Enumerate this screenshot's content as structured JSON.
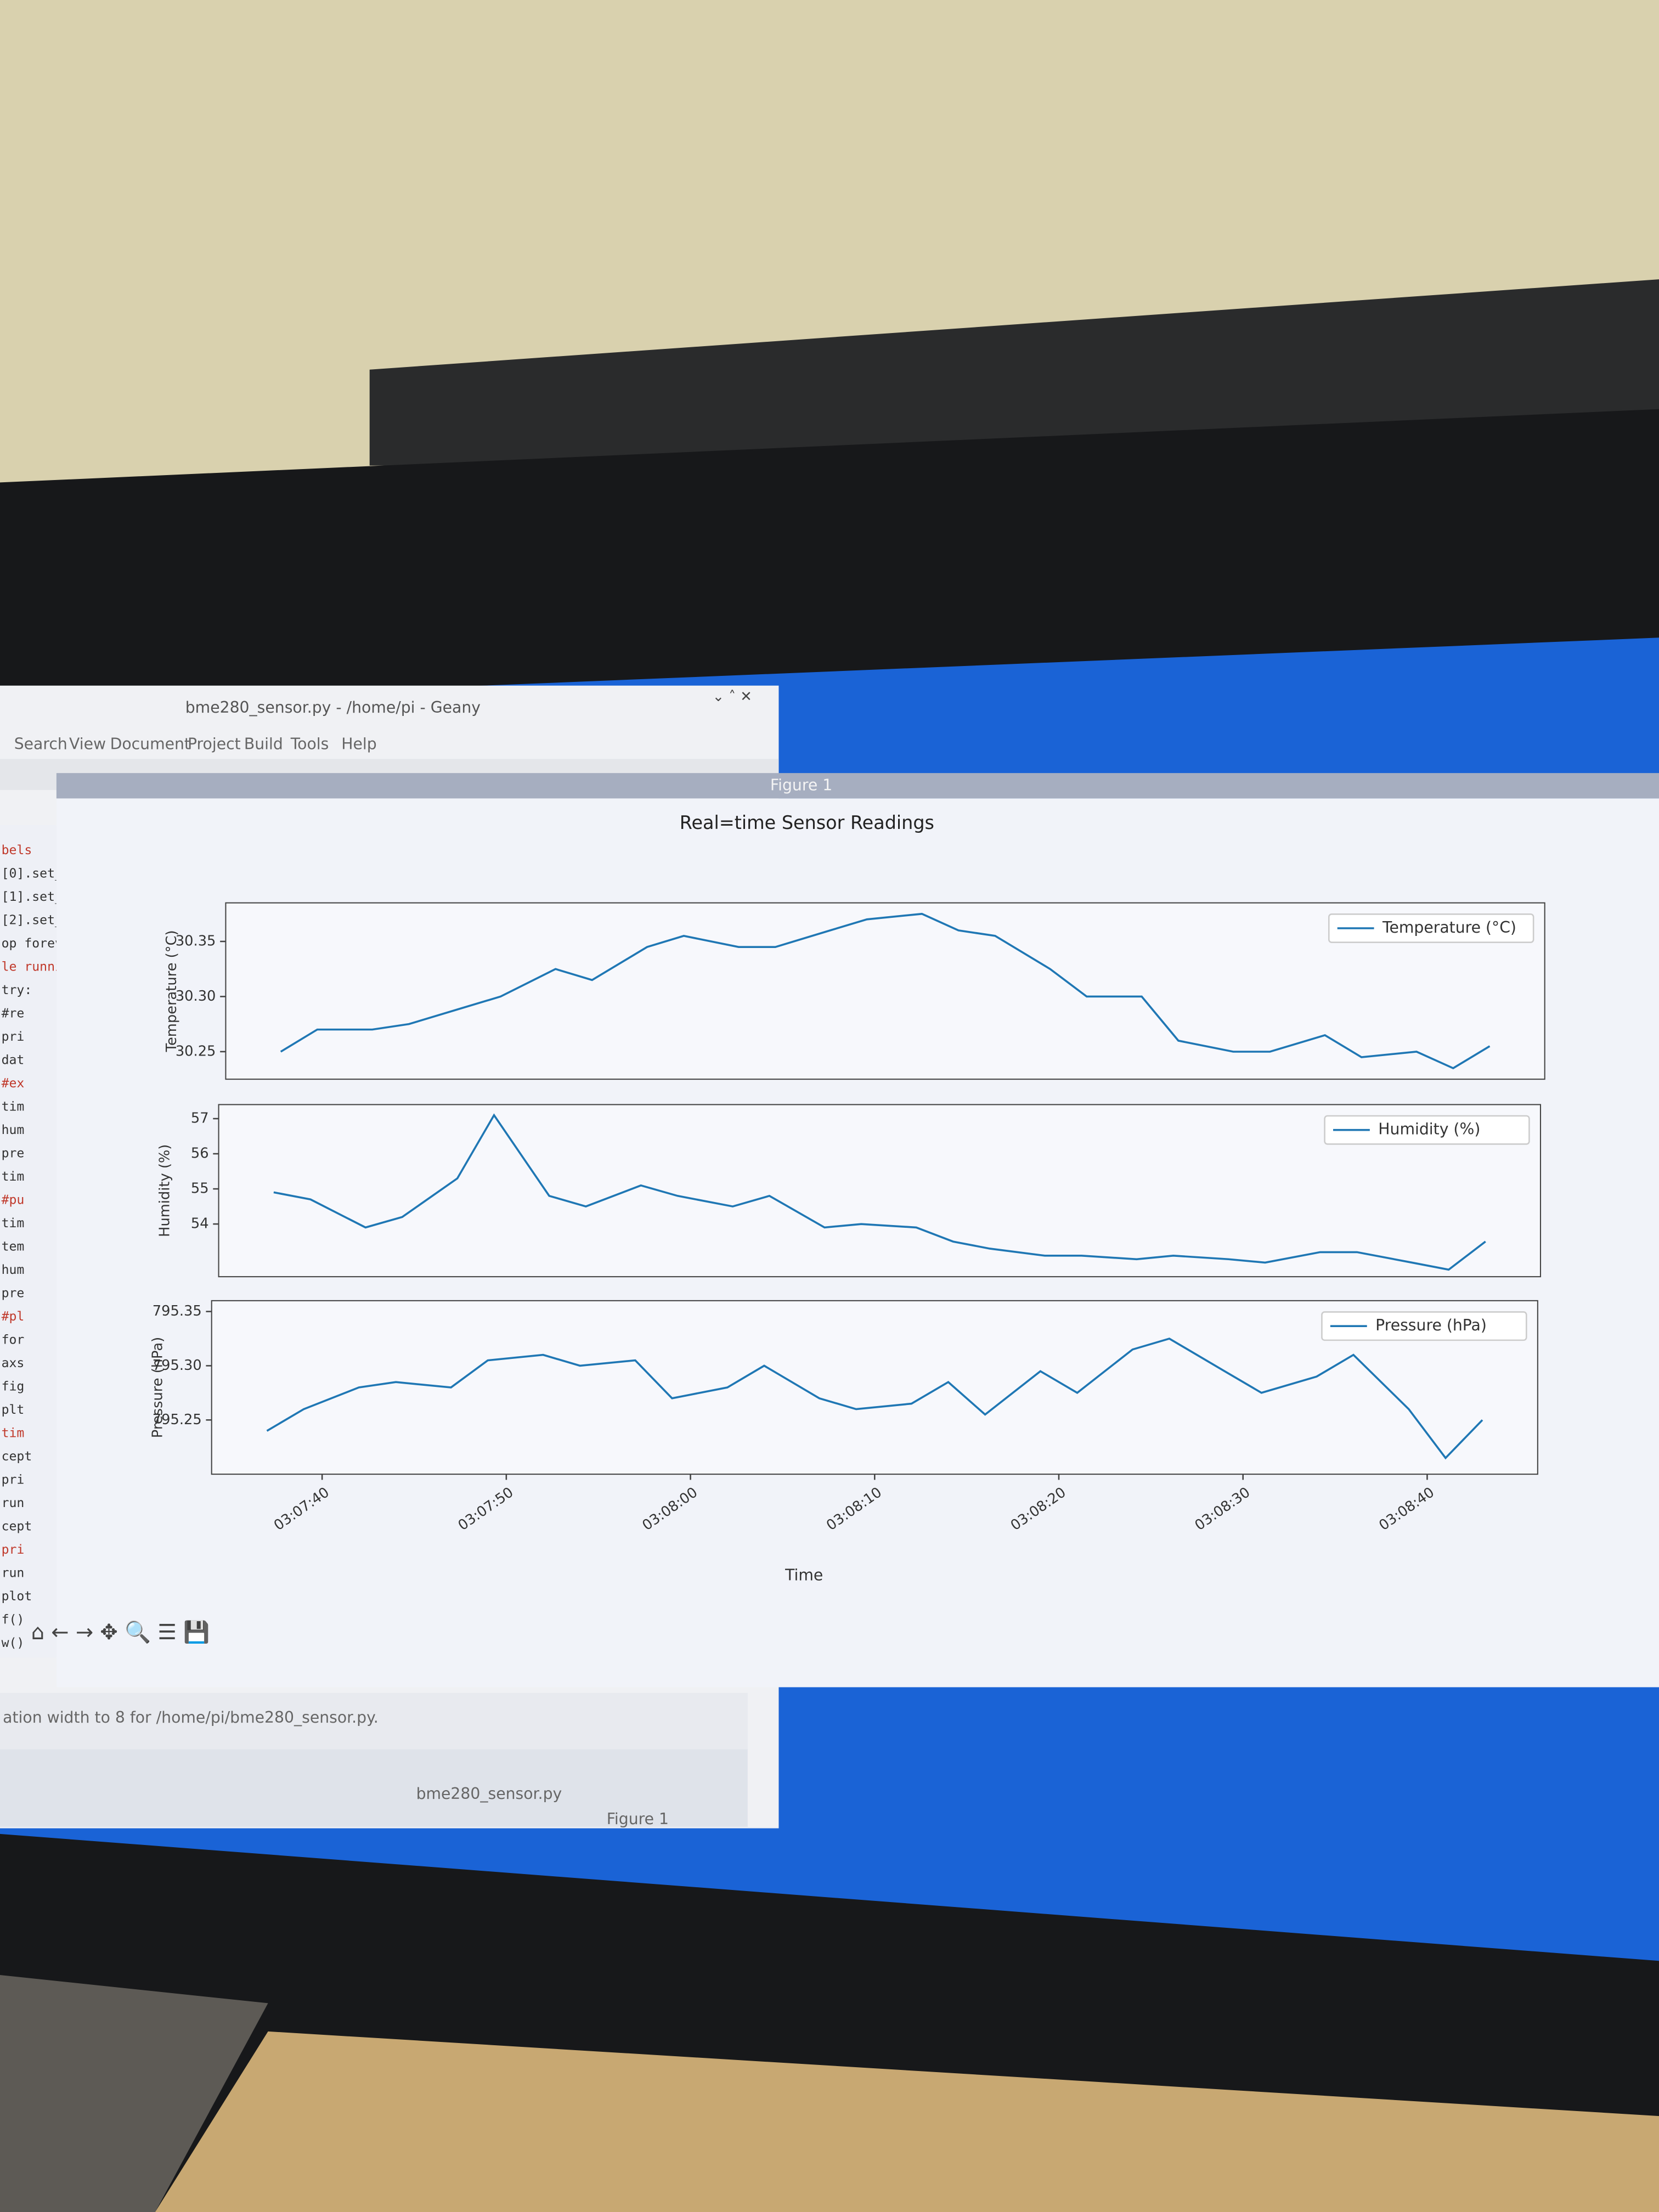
{
  "editor": {
    "title": "bme280_sensor.py - /home/pi - Geany",
    "menu": [
      "Search",
      "View",
      "Document",
      "Project",
      "Build",
      "Tools",
      "Help"
    ],
    "code": [
      "bels",
      "[0].set_",
      "[1].set_",
      "[2].set_",
      "op forev",
      "le runni",
      "try:",
      "#re",
      "pri",
      "dat",
      "#ex",
      "tim",
      "hum",
      "pre",
      "tim",
      "#pu",
      "tim",
      "tem",
      "hum",
      "pre",
      "#pl",
      "for",
      "axs",
      "fig",
      "plt",
      "tim",
      "cept",
      "pri",
      "run",
      "cept",
      "pri",
      "run",
      "plot",
      "f()",
      "w()"
    ],
    "status": "ation width to 8 for /home/pi/bme280_sensor.py."
  },
  "taskbar": [
    "bme280_sensor.py",
    "Figure 1"
  ],
  "figure": {
    "window_title": "Figure 1",
    "suptitle": "Real=time Sensor Readings"
  },
  "chart_data": [
    {
      "type": "line",
      "ylabel": "Temperature (°C)",
      "legend": "upper right",
      "grid": false,
      "x": [
        "03:07:37",
        "03:07:39",
        "03:07:42",
        "03:07:44",
        "03:07:47",
        "03:07:49",
        "03:07:52",
        "03:07:54",
        "03:07:57",
        "03:07:59",
        "03:08:02",
        "03:08:04",
        "03:08:07",
        "03:08:09",
        "03:08:12",
        "03:08:14",
        "03:08:16",
        "03:08:19",
        "03:08:21",
        "03:08:24",
        "03:08:26",
        "03:08:29",
        "03:08:31",
        "03:08:34",
        "03:08:36",
        "03:08:39",
        "03:08:41",
        "03:08:43"
      ],
      "xlim": [
        "03:07:34",
        "03:08:46"
      ],
      "ylim": [
        30.225,
        30.385
      ],
      "yticks": [
        30.25,
        {
          "value": 30.3,
          "label": "30.30"
        },
        30.35
      ],
      "series": [
        {
          "name": "Temperature (°C)",
          "color": "#1f77b4",
          "values": [
            30.25,
            30.27,
            30.27,
            30.275,
            30.29,
            30.3,
            30.325,
            30.315,
            30.345,
            30.355,
            30.345,
            30.345,
            30.36,
            30.37,
            30.375,
            30.36,
            30.355,
            30.325,
            30.3,
            30.3,
            30.26,
            30.25,
            30.25,
            30.265,
            30.245,
            30.25,
            30.235,
            30.255
          ]
        }
      ]
    },
    {
      "type": "line",
      "ylabel": "Humidity (%)",
      "legend": "upper right",
      "grid": false,
      "x": [
        "03:07:37",
        "03:07:39",
        "03:07:42",
        "03:07:44",
        "03:07:47",
        "03:07:49",
        "03:07:52",
        "03:07:54",
        "03:07:57",
        "03:07:59",
        "03:08:02",
        "03:08:04",
        "03:08:07",
        "03:08:09",
        "03:08:12",
        "03:08:14",
        "03:08:16",
        "03:08:19",
        "03:08:21",
        "03:08:24",
        "03:08:26",
        "03:08:29",
        "03:08:31",
        "03:08:34",
        "03:08:36",
        "03:08:39",
        "03:08:41",
        "03:08:43"
      ],
      "xlim": [
        "03:07:34",
        "03:08:46"
      ],
      "ylim": [
        52.5,
        57.4
      ],
      "yticks": [
        54,
        55,
        56,
        57
      ],
      "series": [
        {
          "name": "Humidity (%)",
          "color": "#1f77b4",
          "values": [
            54.9,
            54.7,
            53.9,
            54.2,
            55.3,
            57.1,
            54.8,
            54.5,
            55.1,
            54.8,
            54.5,
            54.8,
            53.9,
            54.0,
            53.9,
            53.5,
            53.3,
            53.1,
            53.1,
            53.0,
            53.1,
            53.0,
            52.9,
            53.2,
            53.2,
            52.9,
            52.7,
            53.5
          ]
        }
      ]
    },
    {
      "type": "line",
      "ylabel": "Pressure (hPa)",
      "xlabel": "Time",
      "legend": "upper right",
      "grid": false,
      "x": [
        "03:07:37",
        "03:07:39",
        "03:07:42",
        "03:07:44",
        "03:07:47",
        "03:07:49",
        "03:07:52",
        "03:07:54",
        "03:07:57",
        "03:07:59",
        "03:08:02",
        "03:08:04",
        "03:08:07",
        "03:08:09",
        "03:08:12",
        "03:08:14",
        "03:08:16",
        "03:08:19",
        "03:08:21",
        "03:08:24",
        "03:08:26",
        "03:08:29",
        "03:08:31",
        "03:08:34",
        "03:08:36",
        "03:08:39",
        "03:08:41",
        "03:08:43"
      ],
      "xlim": [
        "03:07:34",
        "03:08:46"
      ],
      "xticks": [
        "03:07:40",
        "03:07:50",
        "03:08:00",
        "03:08:10",
        "03:08:20",
        "03:08:30",
        "03:08:40"
      ],
      "ylim": [
        795.2,
        795.36
      ],
      "yticks": [
        795.25,
        {
          "value": 795.3,
          "label": "795.30"
        },
        795.35
      ],
      "series": [
        {
          "name": "Pressure (hPa)",
          "color": "#1f77b4",
          "values": [
            795.24,
            795.26,
            795.28,
            795.285,
            795.28,
            795.305,
            795.31,
            795.3,
            795.305,
            795.27,
            795.28,
            795.3,
            795.27,
            795.26,
            795.265,
            795.285,
            795.255,
            795.295,
            795.275,
            795.315,
            795.325,
            795.295,
            795.275,
            795.29,
            795.31,
            795.26,
            795.215,
            795.25
          ]
        }
      ]
    }
  ]
}
